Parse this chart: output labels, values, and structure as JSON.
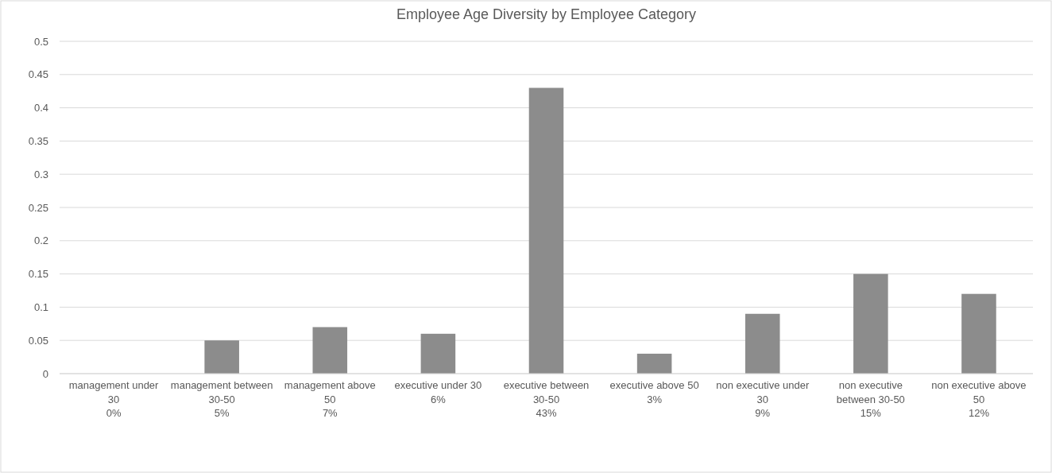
{
  "chart_data": {
    "type": "bar",
    "title": "Employee Age Diversity by Employee Category",
    "categories": [
      "management under 30 0%",
      "management between 30-50 5%",
      "management above 50 7%",
      "executive under 30 6%",
      "executive between 30-50 43%",
      "executive above 50 3%",
      "non executive under 30 9%",
      "non executive between 30-50 15%",
      "non executive above 50 12%"
    ],
    "values": [
      0,
      0.05,
      0.07,
      0.06,
      0.43,
      0.03,
      0.09,
      0.15,
      0.12
    ],
    "color": "#8c8c8c",
    "ylim": [
      0,
      0.5
    ],
    "yticks": [
      0,
      0.05,
      0.1,
      0.15,
      0.2,
      0.25,
      0.3,
      0.35,
      0.4,
      0.45,
      0.5
    ],
    "grid": "y"
  }
}
